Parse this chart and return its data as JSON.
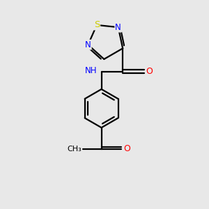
{
  "bg_color": "#e8e8e8",
  "atom_colors": {
    "C": "#000000",
    "N": "#0000ff",
    "O": "#ff0000",
    "S": "#cccc00",
    "H": "#708090"
  },
  "bond_color": "#000000",
  "bond_width": 1.6,
  "font_size_atom": 8.5
}
